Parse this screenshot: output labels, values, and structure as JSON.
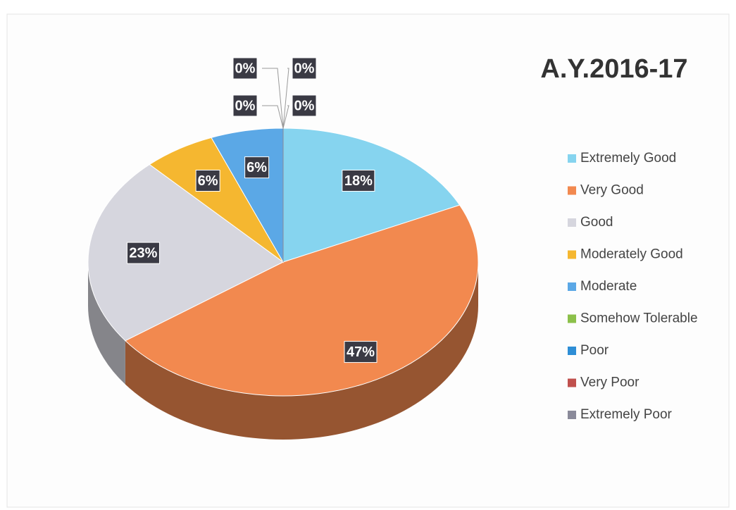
{
  "chart_data": {
    "type": "pie",
    "title": "A.Y.2016-17",
    "categories": [
      "Extremely Good",
      "Very Good",
      "Good",
      "Moderately Good",
      "Moderate",
      "Somehow Tolerable",
      "Poor",
      "Very Poor",
      "Extremely Poor"
    ],
    "values": [
      18,
      47,
      23,
      6,
      6,
      0,
      0,
      0,
      0
    ],
    "value_labels": [
      "18%",
      "47%",
      "23%",
      "6%",
      "6%",
      "0%",
      "0%",
      "0%",
      "0%"
    ],
    "colors": [
      "#86d4ef",
      "#f2894f",
      "#d6d6de",
      "#f5b730",
      "#5ba8e6",
      "#8cc04a",
      "#2e8ed6",
      "#c0504d",
      "#8a8a9a"
    ],
    "legend": "right"
  }
}
